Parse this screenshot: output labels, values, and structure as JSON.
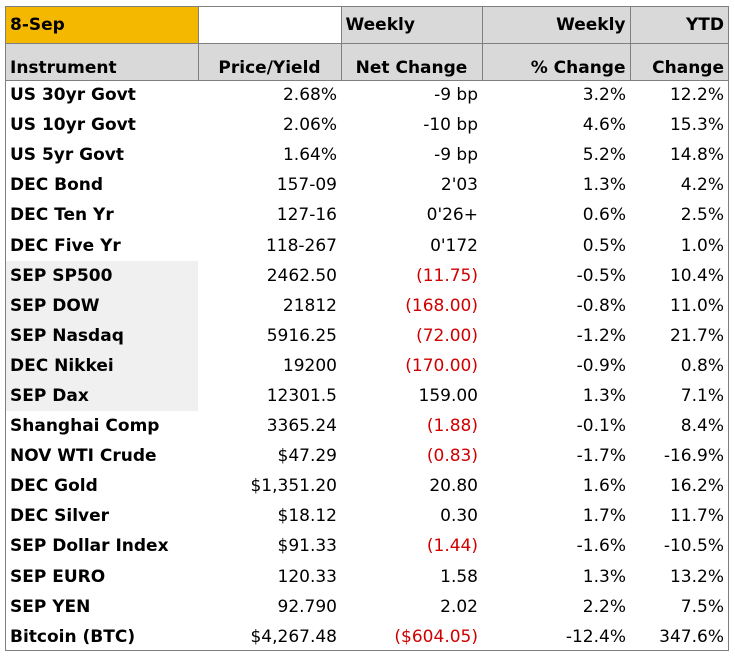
{
  "header": {
    "date": "8-Sep",
    "top": [
      "",
      "Weekly",
      "Weekly",
      "YTD"
    ],
    "bottom": [
      "Instrument",
      "Price/Yield",
      "Net Change",
      "% Change",
      "Change"
    ]
  },
  "rows": [
    {
      "instrument": "US 30yr Govt",
      "price": "2.68%",
      "net_change": "-9 bp",
      "pct_change": "3.2%",
      "ytd": "12.2%",
      "negative": false,
      "shaded": false
    },
    {
      "instrument": "US 10yr Govt",
      "price": "2.06%",
      "net_change": "-10 bp",
      "pct_change": "4.6%",
      "ytd": "15.3%",
      "negative": false,
      "shaded": false
    },
    {
      "instrument": "US 5yr   Govt",
      "price": "1.64%",
      "net_change": "-9 bp",
      "pct_change": "5.2%",
      "ytd": "14.8%",
      "negative": false,
      "shaded": false
    },
    {
      "instrument": "DEC Bond",
      "price": "157-09",
      "net_change": "2'03",
      "pct_change": "1.3%",
      "ytd": "4.2%",
      "negative": false,
      "shaded": false
    },
    {
      "instrument": "DEC Ten Yr",
      "price": "127-16",
      "net_change": "0'26+",
      "pct_change": "0.6%",
      "ytd": "2.5%",
      "negative": false,
      "shaded": false
    },
    {
      "instrument": "DEC Five Yr",
      "price": "118-267",
      "net_change": "0'172",
      "pct_change": "0.5%",
      "ytd": "1.0%",
      "negative": false,
      "shaded": false
    },
    {
      "instrument": "SEP SP500",
      "price": "2462.50",
      "net_change": "(11.75)",
      "pct_change": "-0.5%",
      "ytd": "10.4%",
      "negative": true,
      "shaded": true
    },
    {
      "instrument": "SEP DOW",
      "price": "21812",
      "net_change": "(168.00)",
      "pct_change": "-0.8%",
      "ytd": "11.0%",
      "negative": true,
      "shaded": true
    },
    {
      "instrument": "SEP Nasdaq",
      "price": "5916.25",
      "net_change": "(72.00)",
      "pct_change": "-1.2%",
      "ytd": "21.7%",
      "negative": true,
      "shaded": true
    },
    {
      "instrument": "DEC Nikkei",
      "price": "19200",
      "net_change": "(170.00)",
      "pct_change": "-0.9%",
      "ytd": "0.8%",
      "negative": true,
      "shaded": true
    },
    {
      "instrument": "SEP Dax",
      "price": "12301.5",
      "net_change": "159.00",
      "pct_change": "1.3%",
      "ytd": "7.1%",
      "negative": false,
      "shaded": true
    },
    {
      "instrument": "Shanghai Comp",
      "price": "3365.24",
      "net_change": "(1.88)",
      "pct_change": "-0.1%",
      "ytd": "8.4%",
      "negative": true,
      "shaded": false
    },
    {
      "instrument": "NOV WTI Crude",
      "price": "$47.29",
      "net_change": "(0.83)",
      "pct_change": "-1.7%",
      "ytd": "-16.9%",
      "negative": true,
      "shaded": false
    },
    {
      "instrument": "DEC Gold",
      "price": "$1,351.20",
      "net_change": "20.80",
      "pct_change": "1.6%",
      "ytd": "16.2%",
      "negative": false,
      "shaded": false
    },
    {
      "instrument": "DEC Silver",
      "price": "$18.12",
      "net_change": "0.30",
      "pct_change": "1.7%",
      "ytd": "11.7%",
      "negative": false,
      "shaded": false
    },
    {
      "instrument": "SEP Dollar Index",
      "price": "$91.33",
      "net_change": "(1.44)",
      "pct_change": "-1.6%",
      "ytd": "-10.5%",
      "negative": true,
      "shaded": false
    },
    {
      "instrument": "SEP EURO",
      "price": "120.33",
      "net_change": "1.58",
      "pct_change": "1.3%",
      "ytd": "13.2%",
      "negative": false,
      "shaded": false
    },
    {
      "instrument": "SEP YEN",
      "price": "92.790",
      "net_change": "2.02",
      "pct_change": "2.2%",
      "ytd": "7.5%",
      "negative": false,
      "shaded": false
    },
    {
      "instrument": "Bitcoin (BTC)",
      "price": "$4,267.48",
      "net_change": "($604.05)",
      "pct_change": "-12.4%",
      "ytd": "347.6%",
      "negative": true,
      "shaded": false
    }
  ]
}
